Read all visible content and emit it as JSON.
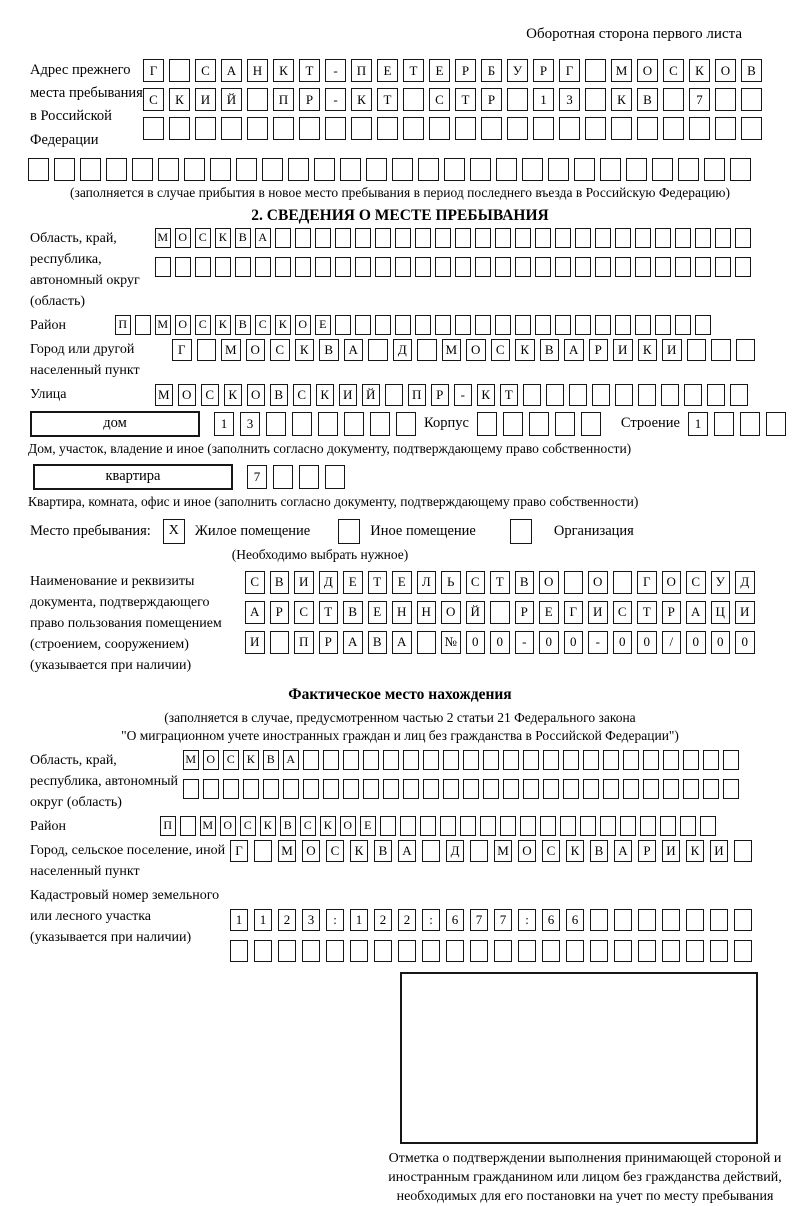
{
  "header": {
    "note": "Оборотная сторона первого листа"
  },
  "prev_address": {
    "label": "Адрес прежнего места пребывания в Российской Федерации",
    "row1": [
      "Г",
      "",
      "С",
      "А",
      "Н",
      "К",
      "Т",
      "-",
      "П",
      "Е",
      "Т",
      "Е",
      "Р",
      "Б",
      "У",
      "Р",
      "Г",
      "",
      "М",
      "О",
      "С",
      "К",
      "О",
      "В"
    ],
    "row2": [
      "С",
      "К",
      "И",
      "Й",
      "",
      "П",
      "Р",
      "-",
      "К",
      "Т",
      "",
      "С",
      "Т",
      "Р",
      "",
      "1",
      "3",
      "",
      "К",
      "В",
      "",
      "7",
      "",
      ""
    ],
    "row3": [
      "",
      "",
      "",
      "",
      "",
      "",
      "",
      "",
      "",
      "",
      "",
      "",
      "",
      "",
      "",
      "",
      "",
      "",
      "",
      "",
      "",
      "",
      "",
      ""
    ],
    "row4": [
      "",
      "",
      "",
      "",
      "",
      "",
      "",
      "",
      "",
      "",
      "",
      "",
      "",
      "",
      "",
      "",
      "",
      "",
      "",
      "",
      "",
      "",
      "",
      "",
      "",
      "",
      "",
      ""
    ],
    "footnote": "(заполняется в случае прибытия в новое место пребывания в период последнего въезда в Российскую Федерацию)"
  },
  "section2": {
    "title": "2. СВЕДЕНИЯ О МЕСТЕ ПРЕБЫВАНИЯ",
    "region": {
      "label": "Область, край, республика, автономный округ (область)",
      "row1": [
        "М",
        "О",
        "С",
        "К",
        "В",
        "А",
        "",
        "",
        "",
        "",
        "",
        "",
        "",
        "",
        "",
        "",
        "",
        "",
        "",
        "",
        "",
        "",
        "",
        "",
        "",
        "",
        "",
        "",
        "",
        ""
      ],
      "row2": [
        "",
        "",
        "",
        "",
        "",
        "",
        "",
        "",
        "",
        "",
        "",
        "",
        "",
        "",
        "",
        "",
        "",
        "",
        "",
        "",
        "",
        "",
        "",
        "",
        "",
        "",
        "",
        "",
        "",
        ""
      ]
    },
    "district": {
      "label": "Район",
      "row": [
        "П",
        "",
        "М",
        "О",
        "С",
        "К",
        "В",
        "С",
        "К",
        "О",
        "Е",
        "",
        "",
        "",
        "",
        "",
        "",
        "",
        "",
        "",
        "",
        "",
        "",
        "",
        "",
        "",
        "",
        "",
        "",
        ""
      ]
    },
    "city": {
      "label": "Город или другой населенный пункт",
      "row": [
        "Г",
        "",
        "М",
        "О",
        "С",
        "К",
        "В",
        "А",
        "",
        "Д",
        "",
        "М",
        "О",
        "С",
        "К",
        "В",
        "А",
        "Р",
        "И",
        "К",
        "И",
        "",
        "",
        ""
      ]
    },
    "street": {
      "label": "Улица",
      "row": [
        "М",
        "О",
        "С",
        "К",
        "О",
        "В",
        "С",
        "К",
        "И",
        "Й",
        "",
        "П",
        "Р",
        "-",
        "К",
        "Т",
        "",
        "",
        "",
        "",
        "",
        "",
        "",
        "",
        "",
        ""
      ]
    },
    "house": {
      "box_label": "дом",
      "cells": [
        "1",
        "3",
        "",
        "",
        "",
        "",
        "",
        ""
      ],
      "korpus_label": "Корпус",
      "korpus_cells": [
        "",
        "",
        "",
        "",
        ""
      ],
      "stroenie_label": "Строение",
      "stroenie_cells": [
        "1",
        "",
        "",
        ""
      ]
    },
    "house_note": "Дом, участок, владение и иное (заполнить согласно документу, подтверждающему право собственности)",
    "apartment": {
      "box_label": "квартира",
      "cells": [
        "7",
        "",
        "",
        ""
      ]
    },
    "apartment_note": "Квартира, комната, офис и иное (заполнить согласно документу, подтверждающему право собственности)",
    "stay_type": {
      "label": "Место пребывания:",
      "options": [
        {
          "label": "Жилое помещение",
          "checked": "X"
        },
        {
          "label": "Иное помещение",
          "checked": ""
        },
        {
          "label": "Организация",
          "checked": ""
        }
      ],
      "note": "(Необходимо выбрать нужное)"
    },
    "document": {
      "label": "Наименование и реквизиты документа, подтверждающего право пользования помещением (строением, сооружением) (указывается при наличии)",
      "row1": [
        "С",
        "В",
        "И",
        "Д",
        "Е",
        "Т",
        "Е",
        "Л",
        "Ь",
        "С",
        "Т",
        "В",
        "О",
        "",
        "О",
        "",
        "Г",
        "О",
        "С",
        "У",
        "Д"
      ],
      "row2": [
        "А",
        "Р",
        "С",
        "Т",
        "В",
        "Е",
        "Н",
        "Н",
        "О",
        "Й",
        "",
        "Р",
        "Е",
        "Г",
        "И",
        "С",
        "Т",
        "Р",
        "А",
        "Ц",
        "И"
      ],
      "row3": [
        "И",
        "",
        "П",
        "Р",
        "А",
        "В",
        "А",
        "",
        "№",
        "0",
        "0",
        "-",
        "0",
        "0",
        "-",
        "0",
        "0",
        "/",
        "0",
        "0",
        "0"
      ]
    }
  },
  "actual_location": {
    "title": "Фактическое место нахождения",
    "note1": "(заполняется в случае, предусмотренном частью 2 статьи 21 Федерального закона",
    "note2": "\"О миграционном учете иностранных граждан и лиц без гражданства в Российской Федерации\")",
    "region": {
      "label": "Область, край, республика, автономный округ (область)",
      "row1": [
        "М",
        "О",
        "С",
        "К",
        "В",
        "А",
        "",
        "",
        "",
        "",
        "",
        "",
        "",
        "",
        "",
        "",
        "",
        "",
        "",
        "",
        "",
        "",
        "",
        "",
        "",
        "",
        "",
        ""
      ],
      "row2": [
        "",
        "",
        "",
        "",
        "",
        "",
        "",
        "",
        "",
        "",
        "",
        "",
        "",
        "",
        "",
        "",
        "",
        "",
        "",
        "",
        "",
        "",
        "",
        "",
        "",
        "",
        "",
        ""
      ]
    },
    "district": {
      "label": "Район",
      "row": [
        "П",
        "",
        "М",
        "О",
        "С",
        "К",
        "В",
        "С",
        "К",
        "О",
        "Е",
        "",
        "",
        "",
        "",
        "",
        "",
        "",
        "",
        "",
        "",
        "",
        "",
        "",
        "",
        "",
        "",
        ""
      ]
    },
    "city": {
      "label": "Город, сельское поселение, иной населенный пункт",
      "row": [
        "Г",
        "",
        "М",
        "О",
        "С",
        "К",
        "В",
        "А",
        "",
        "Д",
        "",
        "М",
        "О",
        "С",
        "К",
        "В",
        "А",
        "Р",
        "И",
        "К",
        "И",
        ""
      ]
    },
    "cadastral": {
      "label": "Кадастровый номер земельного или лесного участка (указывается при наличии)",
      "row1": [
        "1",
        "1",
        "2",
        "3",
        ":",
        "1",
        "2",
        "2",
        ":",
        "6",
        "7",
        "7",
        ":",
        "6",
        "6",
        "",
        "",
        "",
        "",
        "",
        "",
        ""
      ],
      "row2": [
        "",
        "",
        "",
        "",
        "",
        "",
        "",
        "",
        "",
        "",
        "",
        "",
        "",
        "",
        "",
        "",
        "",
        "",
        "",
        "",
        "",
        ""
      ]
    },
    "stamp_caption": "Отметка о подтверждении выполнения принимающей стороной и иностранным гражданином или лицом без гражданства действий, необходимых для его постановки на учет по месту пребывания"
  }
}
